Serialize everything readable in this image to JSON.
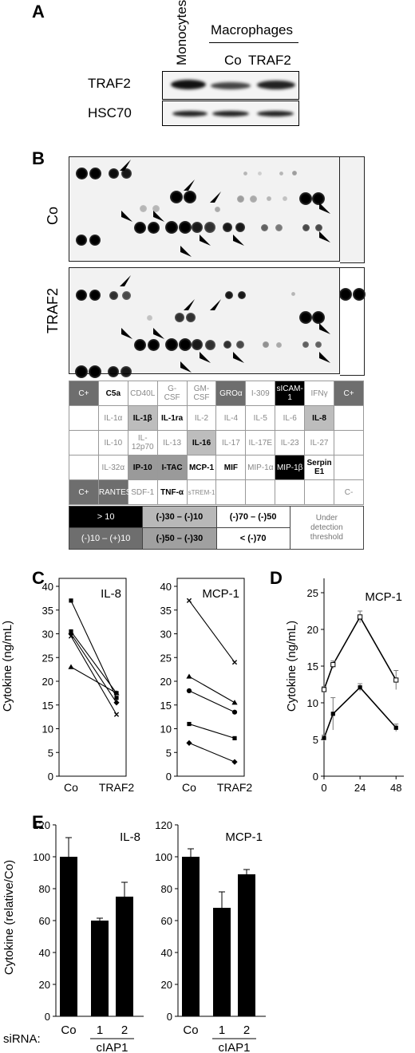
{
  "panelA": {
    "label": "A",
    "col_monocytes": "Monocytes",
    "col_macrophages": "Macrophages",
    "col_co": "Co",
    "col_traf2": "TRAF2",
    "row_traf2": "TRAF2",
    "row_hsc70": "HSC70"
  },
  "panelB": {
    "label": "B",
    "blot_co": "Co",
    "blot_traf2": "TRAF2",
    "grid": [
      [
        {
          "t": "C+",
          "s": "dark"
        },
        {
          "t": "C5a",
          "s": "bold"
        },
        {
          "t": "CD40L",
          "s": ""
        },
        {
          "t": "G-\nCSF",
          "s": ""
        },
        {
          "t": "GM-\nCSF",
          "s": ""
        },
        {
          "t": "GROα",
          "s": "dark"
        },
        {
          "t": "I-309",
          "s": ""
        },
        {
          "t": "sICAM-\n1",
          "s": "black"
        },
        {
          "t": "IFNγ",
          "s": ""
        },
        {
          "t": "C+",
          "s": "dark"
        }
      ],
      [
        {
          "t": "",
          "s": ""
        },
        {
          "t": "IL-1α",
          "s": ""
        },
        {
          "t": "IL-1β",
          "s": "boldgray"
        },
        {
          "t": "IL-1ra",
          "s": "bold"
        },
        {
          "t": "IL-2",
          "s": ""
        },
        {
          "t": "IL-4",
          "s": ""
        },
        {
          "t": "IL-5",
          "s": ""
        },
        {
          "t": "IL-6",
          "s": ""
        },
        {
          "t": "IL-8",
          "s": "boldgray"
        },
        {
          "t": "",
          "s": ""
        }
      ],
      [
        {
          "t": "",
          "s": ""
        },
        {
          "t": "IL-10",
          "s": ""
        },
        {
          "t": "IL-\n12p70",
          "s": ""
        },
        {
          "t": "IL-13",
          "s": ""
        },
        {
          "t": "IL-16",
          "s": "boldgray"
        },
        {
          "t": "IL-17",
          "s": ""
        },
        {
          "t": "IL-17E",
          "s": ""
        },
        {
          "t": "IL-23",
          "s": ""
        },
        {
          "t": "IL-27",
          "s": ""
        },
        {
          "t": "",
          "s": ""
        }
      ],
      [
        {
          "t": "",
          "s": ""
        },
        {
          "t": "IL-32α",
          "s": ""
        },
        {
          "t": "IP-10",
          "s": "boldgray"
        },
        {
          "t": "I-TAC",
          "s": "boldgray"
        },
        {
          "t": "MCP-1",
          "s": "bold"
        },
        {
          "t": "MIF",
          "s": "bold"
        },
        {
          "t": "MIP-1α",
          "s": ""
        },
        {
          "t": "MIP-1β",
          "s": "black"
        },
        {
          "t": "Serpin\nE1",
          "s": "bold"
        },
        {
          "t": "",
          "s": ""
        }
      ],
      [
        {
          "t": "C+",
          "s": "dark"
        },
        {
          "t": "RANTES",
          "s": "dark"
        },
        {
          "t": "SDF-1",
          "s": ""
        },
        {
          "t": "TNF-α",
          "s": "bold"
        },
        {
          "t": "sTREM-1",
          "s": "small"
        },
        {
          "t": "",
          "s": ""
        },
        {
          "t": "",
          "s": ""
        },
        {
          "t": "",
          "s": ""
        },
        {
          "t": "",
          "s": ""
        },
        {
          "t": "C-",
          "s": ""
        }
      ]
    ],
    "legend": [
      [
        {
          "t": "> 10",
          "s": "black"
        },
        {
          "t": "(-)30 – (-)10",
          "s": "lightgray"
        },
        {
          "t": "(-)70 – (-)50",
          "s": "white"
        },
        {
          "t": "Under\ndetection\nthreshold",
          "s": "plain"
        }
      ],
      [
        {
          "t": "(-)10 – (+)10",
          "s": "dark"
        },
        {
          "t": "(-)50 – (-)30",
          "s": "gray"
        },
        {
          "t": "< (-)70",
          "s": "white"
        }
      ]
    ]
  },
  "panelC": {
    "label": "C",
    "ylabel": "Cytokine (ng/mL)",
    "chart_data": [
      {
        "type": "line",
        "title": "IL-8",
        "categories": [
          "Co",
          "TRAF2"
        ],
        "ylim": [
          0,
          40
        ],
        "series": [
          {
            "values": [
              37,
              16.5
            ],
            "marker": "square"
          },
          {
            "values": [
              30.5,
              17.5
            ],
            "marker": "square"
          },
          {
            "values": [
              30,
              15.5
            ],
            "marker": "diamond"
          },
          {
            "values": [
              29.5,
              13
            ],
            "marker": "x"
          },
          {
            "values": [
              23,
              17.5
            ],
            "marker": "triangle"
          }
        ]
      },
      {
        "type": "line",
        "title": "MCP-1",
        "categories": [
          "Co",
          "TRAF2"
        ],
        "ylim": [
          0,
          40
        ],
        "series": [
          {
            "values": [
              37,
              24
            ],
            "marker": "x"
          },
          {
            "values": [
              21,
              15.5
            ],
            "marker": "triangle"
          },
          {
            "values": [
              18,
              13.5
            ],
            "marker": "circle"
          },
          {
            "values": [
              11,
              8
            ],
            "marker": "square"
          },
          {
            "values": [
              7,
              3
            ],
            "marker": "diamond"
          }
        ]
      }
    ]
  },
  "panelD": {
    "label": "D",
    "ylabel": "Cytokine (ng/mL)",
    "chart_data": {
      "type": "line",
      "title": "MCP-1",
      "x": [
        0,
        6,
        24,
        48
      ],
      "xticks": [
        0,
        24,
        48
      ],
      "ylim": [
        0,
        25
      ],
      "xlim": [
        0,
        50
      ],
      "series": [
        {
          "marker": "open-square",
          "values": [
            11.8,
            15.2,
            21.7,
            13.1
          ],
          "err": [
            0.4,
            0.5,
            0.8,
            1.3
          ]
        },
        {
          "marker": "filled-square",
          "values": [
            5.2,
            8.5,
            12.1,
            6.6
          ],
          "err": [
            0.4,
            2.2,
            0.5,
            0.5
          ]
        }
      ]
    }
  },
  "panelE": {
    "label": "E",
    "ylabel": "Cytokine (relative/Co)",
    "sirna_label": "siRNA:",
    "ciap1": "cIAP1",
    "chart_data": [
      {
        "type": "bar",
        "title": "IL-8",
        "categories": [
          "Co",
          "1",
          "2"
        ],
        "values": [
          100,
          60,
          75
        ],
        "err": [
          12,
          1.5,
          9
        ],
        "ylim": [
          0,
          120
        ]
      },
      {
        "type": "bar",
        "title": "MCP-1",
        "categories": [
          "Co",
          "1",
          "2"
        ],
        "values": [
          100,
          68,
          89
        ],
        "err": [
          5,
          10,
          3
        ],
        "ylim": [
          0,
          120
        ]
      }
    ]
  }
}
